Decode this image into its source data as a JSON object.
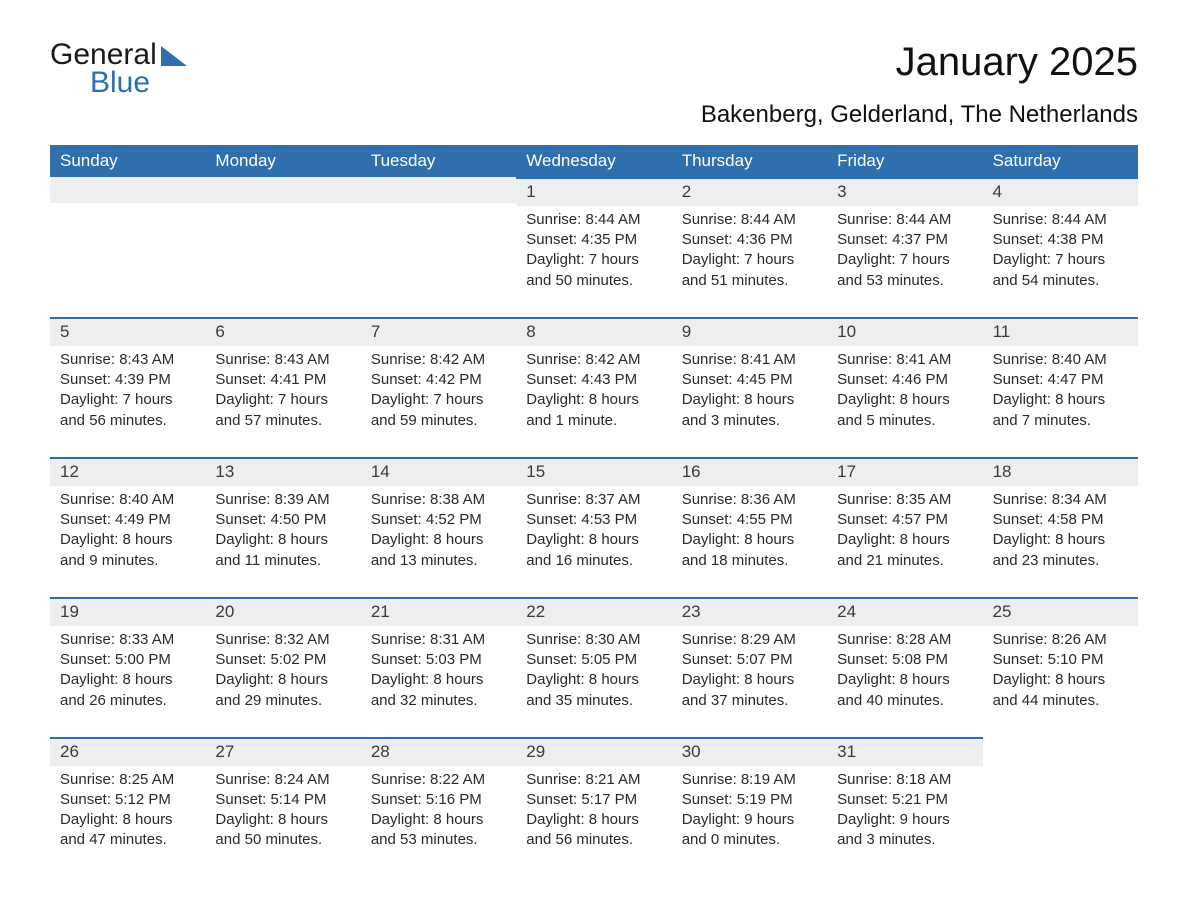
{
  "logo": {
    "word1": "General",
    "word2": "Blue"
  },
  "title": "January 2025",
  "location": "Bakenberg, Gelderland, The Netherlands",
  "colors": {
    "header_bg": "#2f6fad",
    "header_text": "#ffffff",
    "daybar_bg": "#eceeef",
    "daybar_border": "#2f6fad",
    "body_text": "#2a2a2a",
    "page_bg": "#ffffff"
  },
  "typography": {
    "title_fontsize": 40,
    "location_fontsize": 24,
    "dayhead_fontsize": 17,
    "cell_fontsize": 15
  },
  "day_names": [
    "Sunday",
    "Monday",
    "Tuesday",
    "Wednesday",
    "Thursday",
    "Friday",
    "Saturday"
  ],
  "weeks": [
    [
      null,
      null,
      null,
      {
        "num": "1",
        "sunrise": "Sunrise: 8:44 AM",
        "sunset": "Sunset: 4:35 PM",
        "day1": "Daylight: 7 hours",
        "day2": "and 50 minutes."
      },
      {
        "num": "2",
        "sunrise": "Sunrise: 8:44 AM",
        "sunset": "Sunset: 4:36 PM",
        "day1": "Daylight: 7 hours",
        "day2": "and 51 minutes."
      },
      {
        "num": "3",
        "sunrise": "Sunrise: 8:44 AM",
        "sunset": "Sunset: 4:37 PM",
        "day1": "Daylight: 7 hours",
        "day2": "and 53 minutes."
      },
      {
        "num": "4",
        "sunrise": "Sunrise: 8:44 AM",
        "sunset": "Sunset: 4:38 PM",
        "day1": "Daylight: 7 hours",
        "day2": "and 54 minutes."
      }
    ],
    [
      {
        "num": "5",
        "sunrise": "Sunrise: 8:43 AM",
        "sunset": "Sunset: 4:39 PM",
        "day1": "Daylight: 7 hours",
        "day2": "and 56 minutes."
      },
      {
        "num": "6",
        "sunrise": "Sunrise: 8:43 AM",
        "sunset": "Sunset: 4:41 PM",
        "day1": "Daylight: 7 hours",
        "day2": "and 57 minutes."
      },
      {
        "num": "7",
        "sunrise": "Sunrise: 8:42 AM",
        "sunset": "Sunset: 4:42 PM",
        "day1": "Daylight: 7 hours",
        "day2": "and 59 minutes."
      },
      {
        "num": "8",
        "sunrise": "Sunrise: 8:42 AM",
        "sunset": "Sunset: 4:43 PM",
        "day1": "Daylight: 8 hours",
        "day2": "and 1 minute."
      },
      {
        "num": "9",
        "sunrise": "Sunrise: 8:41 AM",
        "sunset": "Sunset: 4:45 PM",
        "day1": "Daylight: 8 hours",
        "day2": "and 3 minutes."
      },
      {
        "num": "10",
        "sunrise": "Sunrise: 8:41 AM",
        "sunset": "Sunset: 4:46 PM",
        "day1": "Daylight: 8 hours",
        "day2": "and 5 minutes."
      },
      {
        "num": "11",
        "sunrise": "Sunrise: 8:40 AM",
        "sunset": "Sunset: 4:47 PM",
        "day1": "Daylight: 8 hours",
        "day2": "and 7 minutes."
      }
    ],
    [
      {
        "num": "12",
        "sunrise": "Sunrise: 8:40 AM",
        "sunset": "Sunset: 4:49 PM",
        "day1": "Daylight: 8 hours",
        "day2": "and 9 minutes."
      },
      {
        "num": "13",
        "sunrise": "Sunrise: 8:39 AM",
        "sunset": "Sunset: 4:50 PM",
        "day1": "Daylight: 8 hours",
        "day2": "and 11 minutes."
      },
      {
        "num": "14",
        "sunrise": "Sunrise: 8:38 AM",
        "sunset": "Sunset: 4:52 PM",
        "day1": "Daylight: 8 hours",
        "day2": "and 13 minutes."
      },
      {
        "num": "15",
        "sunrise": "Sunrise: 8:37 AM",
        "sunset": "Sunset: 4:53 PM",
        "day1": "Daylight: 8 hours",
        "day2": "and 16 minutes."
      },
      {
        "num": "16",
        "sunrise": "Sunrise: 8:36 AM",
        "sunset": "Sunset: 4:55 PM",
        "day1": "Daylight: 8 hours",
        "day2": "and 18 minutes."
      },
      {
        "num": "17",
        "sunrise": "Sunrise: 8:35 AM",
        "sunset": "Sunset: 4:57 PM",
        "day1": "Daylight: 8 hours",
        "day2": "and 21 minutes."
      },
      {
        "num": "18",
        "sunrise": "Sunrise: 8:34 AM",
        "sunset": "Sunset: 4:58 PM",
        "day1": "Daylight: 8 hours",
        "day2": "and 23 minutes."
      }
    ],
    [
      {
        "num": "19",
        "sunrise": "Sunrise: 8:33 AM",
        "sunset": "Sunset: 5:00 PM",
        "day1": "Daylight: 8 hours",
        "day2": "and 26 minutes."
      },
      {
        "num": "20",
        "sunrise": "Sunrise: 8:32 AM",
        "sunset": "Sunset: 5:02 PM",
        "day1": "Daylight: 8 hours",
        "day2": "and 29 minutes."
      },
      {
        "num": "21",
        "sunrise": "Sunrise: 8:31 AM",
        "sunset": "Sunset: 5:03 PM",
        "day1": "Daylight: 8 hours",
        "day2": "and 32 minutes."
      },
      {
        "num": "22",
        "sunrise": "Sunrise: 8:30 AM",
        "sunset": "Sunset: 5:05 PM",
        "day1": "Daylight: 8 hours",
        "day2": "and 35 minutes."
      },
      {
        "num": "23",
        "sunrise": "Sunrise: 8:29 AM",
        "sunset": "Sunset: 5:07 PM",
        "day1": "Daylight: 8 hours",
        "day2": "and 37 minutes."
      },
      {
        "num": "24",
        "sunrise": "Sunrise: 8:28 AM",
        "sunset": "Sunset: 5:08 PM",
        "day1": "Daylight: 8 hours",
        "day2": "and 40 minutes."
      },
      {
        "num": "25",
        "sunrise": "Sunrise: 8:26 AM",
        "sunset": "Sunset: 5:10 PM",
        "day1": "Daylight: 8 hours",
        "day2": "and 44 minutes."
      }
    ],
    [
      {
        "num": "26",
        "sunrise": "Sunrise: 8:25 AM",
        "sunset": "Sunset: 5:12 PM",
        "day1": "Daylight: 8 hours",
        "day2": "and 47 minutes."
      },
      {
        "num": "27",
        "sunrise": "Sunrise: 8:24 AM",
        "sunset": "Sunset: 5:14 PM",
        "day1": "Daylight: 8 hours",
        "day2": "and 50 minutes."
      },
      {
        "num": "28",
        "sunrise": "Sunrise: 8:22 AM",
        "sunset": "Sunset: 5:16 PM",
        "day1": "Daylight: 8 hours",
        "day2": "and 53 minutes."
      },
      {
        "num": "29",
        "sunrise": "Sunrise: 8:21 AM",
        "sunset": "Sunset: 5:17 PM",
        "day1": "Daylight: 8 hours",
        "day2": "and 56 minutes."
      },
      {
        "num": "30",
        "sunrise": "Sunrise: 8:19 AM",
        "sunset": "Sunset: 5:19 PM",
        "day1": "Daylight: 9 hours",
        "day2": "and 0 minutes."
      },
      {
        "num": "31",
        "sunrise": "Sunrise: 8:18 AM",
        "sunset": "Sunset: 5:21 PM",
        "day1": "Daylight: 9 hours",
        "day2": "and 3 minutes."
      },
      null
    ]
  ]
}
